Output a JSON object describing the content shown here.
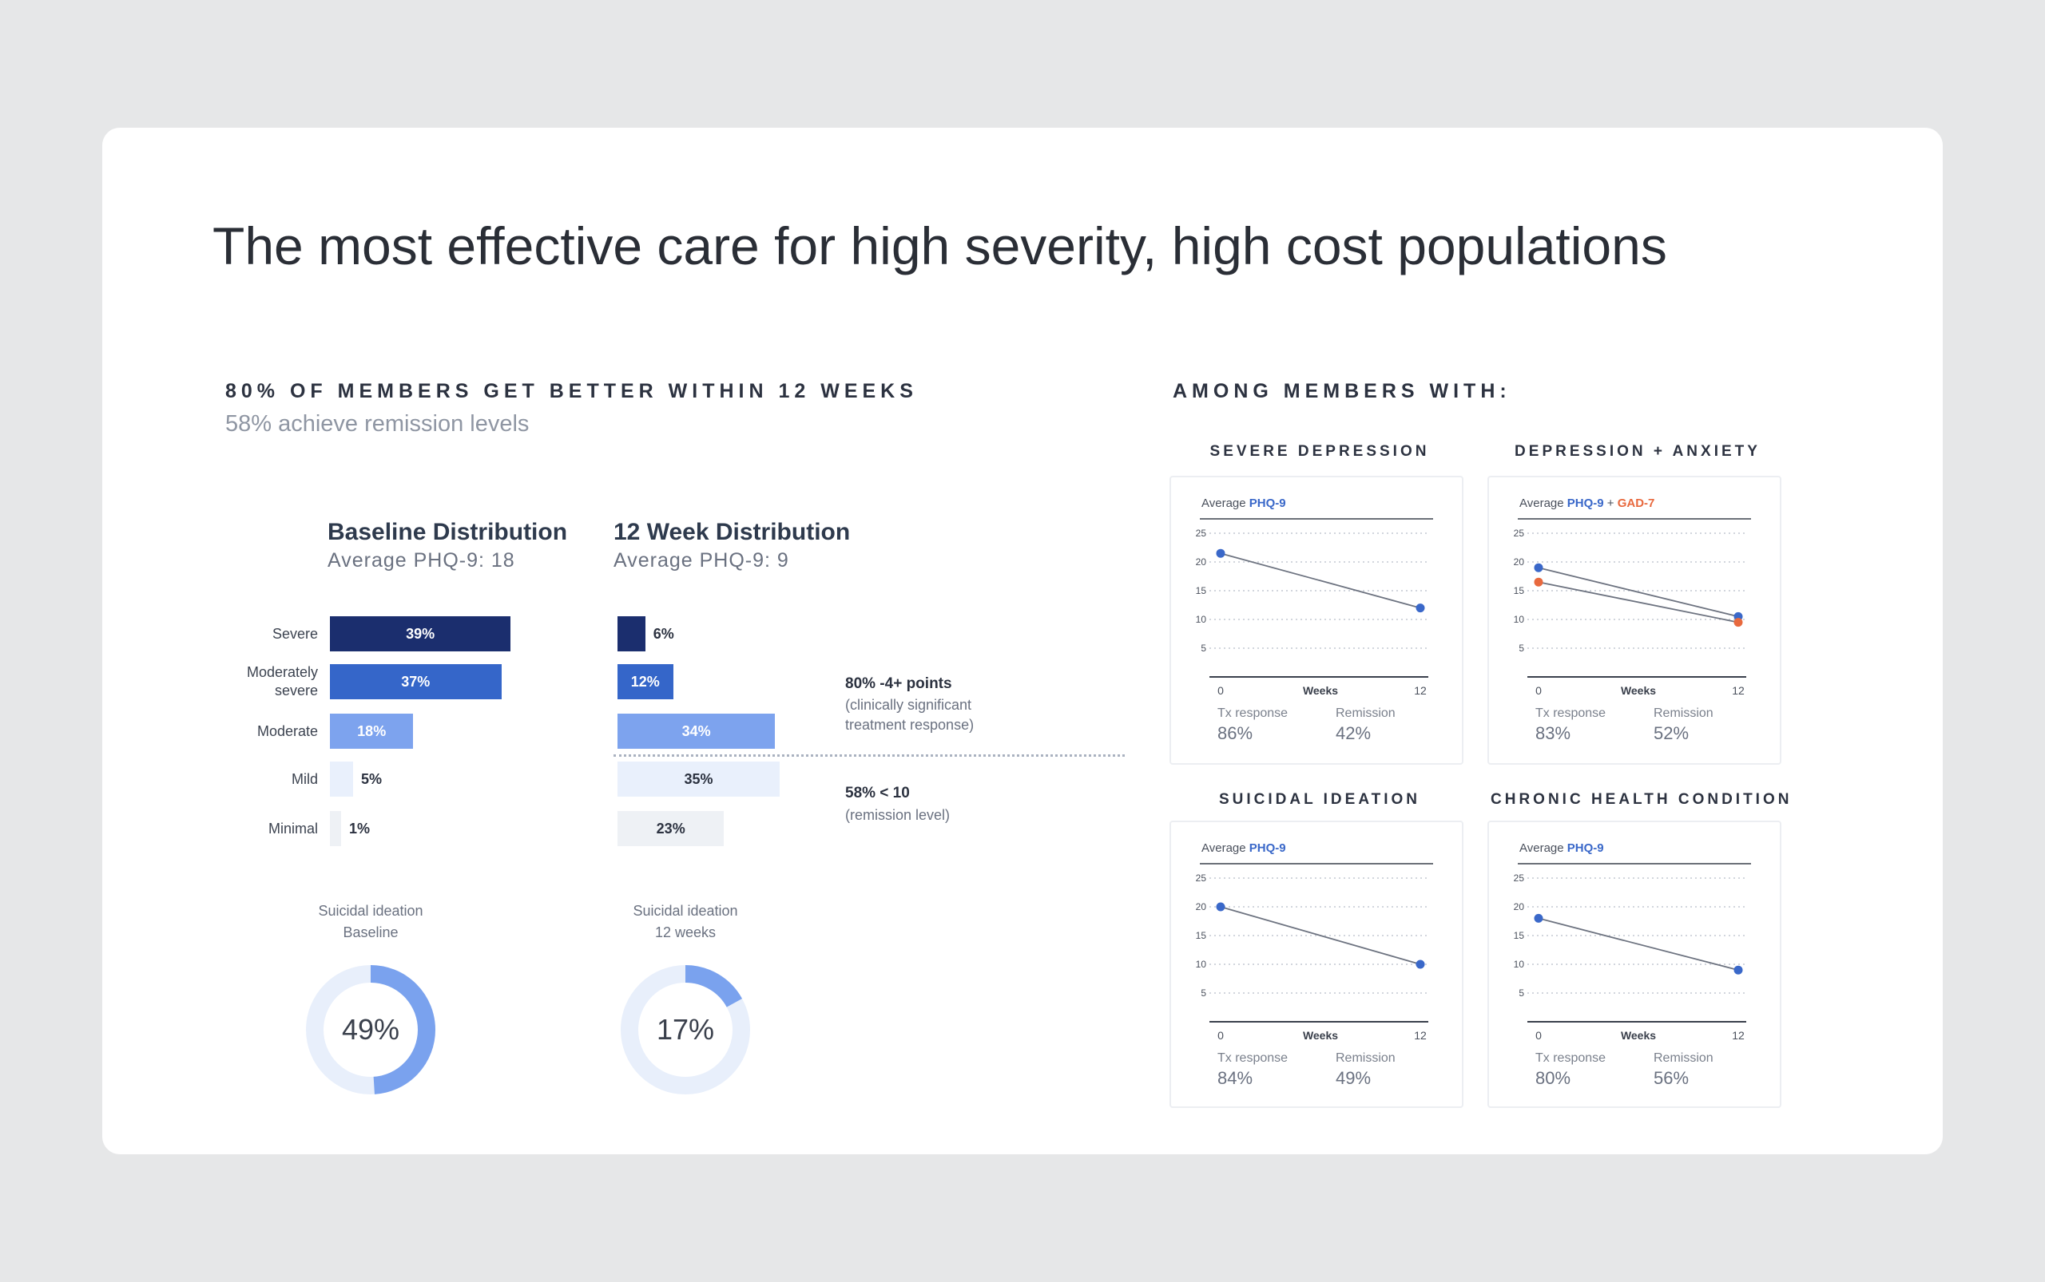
{
  "page": {
    "title": "The most effective care for high severity, high cost populations"
  },
  "left": {
    "heading": "80% OF MEMBERS GET BETTER WITHIN 12 WEEKS",
    "subheading": "58% achieve remission levels"
  },
  "right": {
    "heading": "AMONG MEMBERS WITH:"
  },
  "annotations": {
    "response_bold": "80% -4+ points",
    "response_line1": "(clinically significant",
    "response_line2": "treatment response)",
    "remission_bold": "58% < 10",
    "remission_line1": "(remission level)"
  },
  "colors": {
    "severe": "#1b2e6e",
    "moderately_severe": "#3566c9",
    "moderate": "#7da3ee",
    "mild": "#e9f0fc",
    "minimal": "#eef1f5",
    "phq": "#3a68c9",
    "gad": "#e8693e",
    "donut_fill": "#7aa2ee",
    "donut_track": "#e8effb"
  },
  "chart_data": [
    {
      "type": "bar",
      "orientation": "horizontal",
      "title": "Baseline Distribution",
      "subtitle": "Average PHQ-9: 18",
      "categories": [
        "Severe",
        "Moderately severe",
        "Moderate",
        "Mild",
        "Minimal"
      ],
      "category_lines": [
        [
          "Severe"
        ],
        [
          "Moderately",
          "severe"
        ],
        [
          "Moderate"
        ],
        [
          "Mild"
        ],
        [
          "Minimal"
        ]
      ],
      "values": [
        39,
        37,
        18,
        5,
        1
      ],
      "labels": [
        "39%",
        "37%",
        "18%",
        "5%",
        "1%"
      ]
    },
    {
      "type": "bar",
      "orientation": "horizontal",
      "title": "12 Week Distribution",
      "subtitle": "Average PHQ-9: 9",
      "categories": [
        "Severe",
        "Moderately severe",
        "Moderate",
        "Mild",
        "Minimal"
      ],
      "values": [
        6,
        12,
        34,
        35,
        23
      ],
      "labels": [
        "6%",
        "12%",
        "34%",
        "35%",
        "23%"
      ]
    },
    {
      "type": "pie",
      "title": "Suicidal ideation",
      "subtitle": "Baseline",
      "value": 49,
      "label": "49%"
    },
    {
      "type": "pie",
      "title": "Suicidal ideation",
      "subtitle": "12 weeks",
      "value": 17,
      "label": "17%"
    },
    {
      "type": "line",
      "title": "SEVERE DEPRESSION",
      "legend_prefix": "Average ",
      "legend_series": [
        "PHQ-9"
      ],
      "xlabel": "Weeks",
      "x": [
        0,
        12
      ],
      "ylim": [
        0,
        25
      ],
      "yticks": [
        5,
        10,
        15,
        20,
        25
      ],
      "series": [
        {
          "name": "PHQ-9",
          "values": [
            21.5,
            12
          ]
        }
      ],
      "stats": {
        "tx_label": "Tx response",
        "tx_value": "86%",
        "rem_label": "Remission",
        "rem_value": "42%"
      }
    },
    {
      "type": "line",
      "title": "DEPRESSION + ANXIETY",
      "legend_prefix": "Average ",
      "legend_series": [
        "PHQ-9",
        "GAD-7"
      ],
      "xlabel": "Weeks",
      "x": [
        0,
        12
      ],
      "ylim": [
        0,
        25
      ],
      "yticks": [
        5,
        10,
        15,
        20,
        25
      ],
      "series": [
        {
          "name": "PHQ-9",
          "values": [
            19,
            10.5
          ]
        },
        {
          "name": "GAD-7",
          "values": [
            16.5,
            9.5
          ]
        }
      ],
      "stats": {
        "tx_label": "Tx response",
        "tx_value": "83%",
        "rem_label": "Remission",
        "rem_value": "52%"
      }
    },
    {
      "type": "line",
      "title": "SUICIDAL IDEATION",
      "legend_prefix": "Average ",
      "legend_series": [
        "PHQ-9"
      ],
      "xlabel": "Weeks",
      "x": [
        0,
        12
      ],
      "ylim": [
        0,
        25
      ],
      "yticks": [
        5,
        10,
        15,
        20,
        25
      ],
      "series": [
        {
          "name": "PHQ-9",
          "values": [
            20,
            10
          ]
        }
      ],
      "stats": {
        "tx_label": "Tx response",
        "tx_value": "84%",
        "rem_label": "Remission",
        "rem_value": "49%"
      }
    },
    {
      "type": "line",
      "title": "CHRONIC HEALTH CONDITION",
      "legend_prefix": "Average ",
      "legend_series": [
        "PHQ-9"
      ],
      "xlabel": "Weeks",
      "x": [
        0,
        12
      ],
      "ylim": [
        0,
        25
      ],
      "yticks": [
        5,
        10,
        15,
        20,
        25
      ],
      "series": [
        {
          "name": "PHQ-9",
          "values": [
            18,
            9
          ]
        }
      ],
      "stats": {
        "tx_label": "Tx response",
        "tx_value": "80%",
        "rem_label": "Remission",
        "rem_value": "56%"
      }
    }
  ]
}
